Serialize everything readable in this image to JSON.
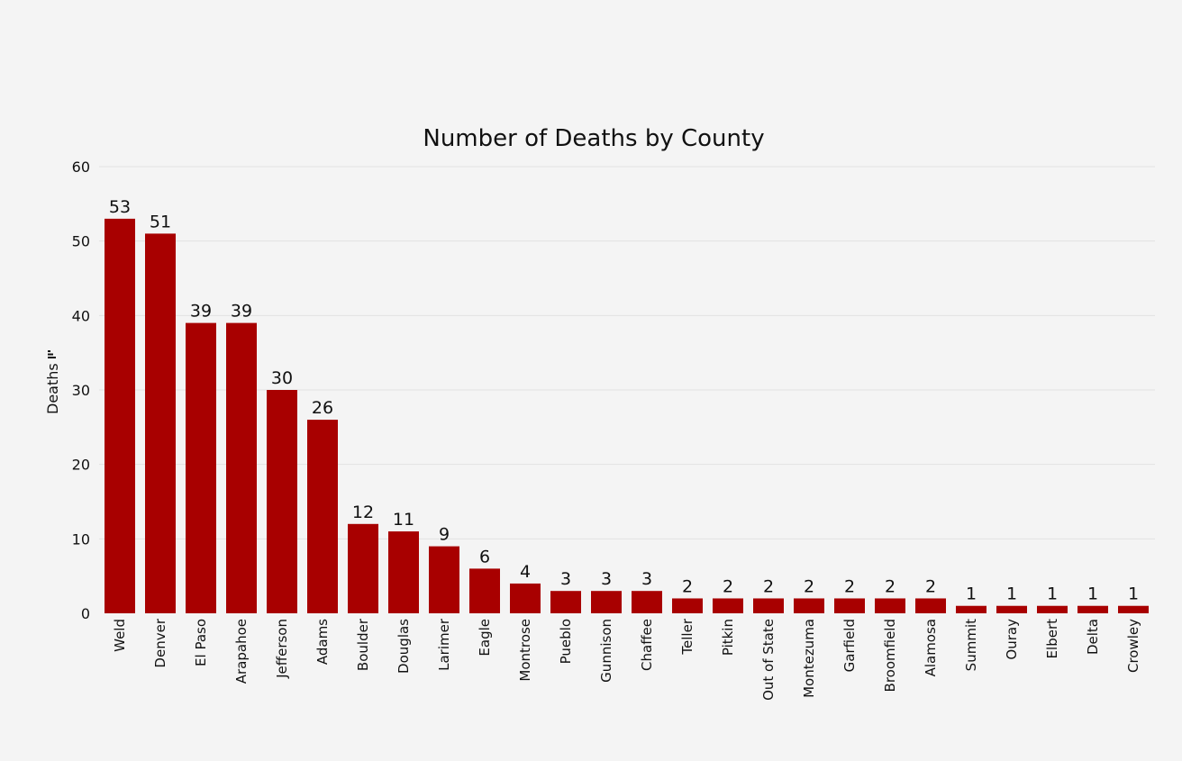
{
  "chart_data": {
    "type": "bar",
    "title": "Number of Deaths by County",
    "xlabel": "",
    "ylabel": "Deaths",
    "ylabel_icon": "bar-chart-icon",
    "ylim": [
      0,
      60
    ],
    "yticks": [
      0,
      10,
      20,
      30,
      40,
      50,
      60
    ],
    "grid": true,
    "bar_color": "#a80000",
    "categories": [
      "Weld",
      "Denver",
      "El Paso",
      "Arapahoe",
      "Jefferson",
      "Adams",
      "Boulder",
      "Douglas",
      "Larimer",
      "Eagle",
      "Montrose",
      "Pueblo",
      "Gunnison",
      "Chaffee",
      "Teller",
      "Pitkin",
      "Out of State",
      "Montezuma",
      "Garfield",
      "Broomfield",
      "Alamosa",
      "Summit",
      "Ouray",
      "Elbert",
      "Delta",
      "Crowley"
    ],
    "values": [
      53,
      51,
      39,
      39,
      30,
      26,
      12,
      11,
      9,
      6,
      4,
      3,
      3,
      3,
      2,
      2,
      2,
      2,
      2,
      2,
      2,
      1,
      1,
      1,
      1,
      1
    ]
  }
}
